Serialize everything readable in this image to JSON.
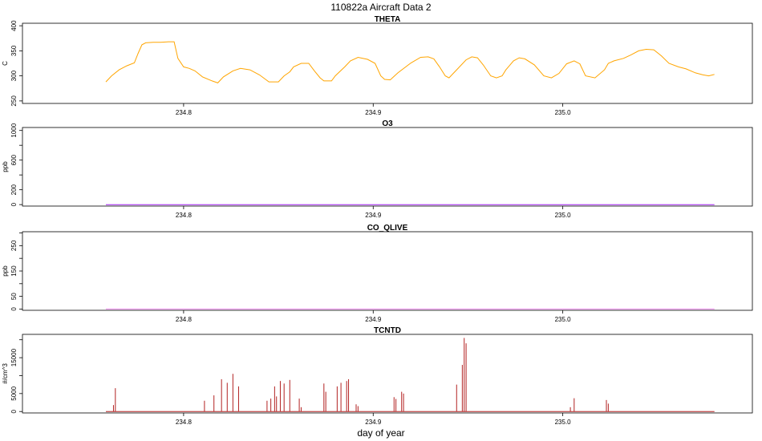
{
  "figure": {
    "title": "110822a   Aircraft Data 2",
    "xlabel": "day of year"
  },
  "chart_data": [
    {
      "type": "line",
      "title": "THETA",
      "ylabel": "C",
      "color": "#FFA500",
      "xlim": [
        234.715,
        235.1
      ],
      "ylim": [
        245,
        405
      ],
      "xticks": [
        234.8,
        234.9,
        235.0
      ],
      "xtick_labels": [
        "234.8",
        "234.9",
        "235.0"
      ],
      "yticks": [
        250,
        300,
        350,
        400
      ],
      "ytick_labels": [
        "250",
        "300",
        "350",
        "400"
      ],
      "x": [
        234.759,
        234.762,
        234.766,
        234.77,
        234.774,
        234.776,
        234.778,
        234.78,
        234.784,
        234.788,
        234.792,
        234.795,
        234.797,
        234.8,
        234.803,
        234.806,
        234.81,
        234.815,
        234.818,
        234.821,
        234.826,
        234.83,
        234.835,
        234.84,
        234.845,
        234.85,
        234.853,
        234.856,
        234.858,
        234.862,
        234.866,
        234.869,
        234.872,
        234.874,
        234.876,
        234.878,
        234.88,
        234.885,
        234.888,
        234.892,
        234.897,
        234.901,
        234.904,
        234.906,
        234.909,
        234.913,
        234.92,
        234.925,
        234.929,
        234.932,
        234.935,
        234.938,
        234.94,
        234.944,
        234.949,
        234.952,
        234.955,
        234.958,
        234.962,
        234.965,
        234.968,
        234.97,
        234.974,
        234.977,
        234.98,
        234.985,
        234.99,
        234.994,
        234.998,
        235.002,
        235.006,
        235.009,
        235.012,
        235.017,
        235.022,
        235.024,
        235.027,
        235.032,
        235.036,
        235.04,
        235.044,
        235.048,
        235.052,
        235.056,
        235.061,
        235.065,
        235.07,
        235.074,
        235.077,
        235.08
      ],
      "y": [
        288,
        300,
        312,
        320,
        326,
        345,
        362,
        366,
        367,
        367,
        368,
        368,
        335,
        318,
        315,
        310,
        298,
        290,
        286,
        298,
        310,
        315,
        312,
        302,
        288,
        288,
        300,
        308,
        318,
        325,
        325,
        310,
        296,
        290,
        290,
        290,
        300,
        318,
        330,
        337,
        333,
        325,
        300,
        293,
        292,
        306,
        326,
        337,
        338,
        334,
        318,
        300,
        296,
        312,
        332,
        338,
        336,
        322,
        300,
        296,
        300,
        312,
        330,
        336,
        334,
        322,
        300,
        296,
        305,
        324,
        330,
        324,
        300,
        296,
        312,
        325,
        330,
        335,
        342,
        350,
        353,
        352,
        340,
        325,
        318,
        314,
        306,
        302,
        300,
        303
      ]
    },
    {
      "type": "line",
      "title": "O3",
      "ylabel": "ppb",
      "color": "#A020F0",
      "xlim": [
        234.715,
        235.1
      ],
      "ylim": [
        -20,
        1040
      ],
      "xticks": [
        234.8,
        234.9,
        235.0
      ],
      "xtick_labels": [
        "234.8",
        "234.9",
        "235.0"
      ],
      "yticks": [
        0,
        200,
        400,
        600,
        800,
        1000
      ],
      "ytick_labels": [
        "0",
        "200",
        "",
        "600",
        "",
        "1000"
      ],
      "x": [
        234.759,
        235.08
      ],
      "y": [
        0,
        0
      ]
    },
    {
      "type": "line",
      "title": "CO_QLIVE",
      "ylabel": "ppb",
      "color": "#EE82EE",
      "xlim": [
        234.715,
        235.1
      ],
      "ylim": [
        -5,
        305
      ],
      "xticks": [
        234.8,
        234.9,
        235.0
      ],
      "xtick_labels": [
        "234.8",
        "234.9",
        "235.0"
      ],
      "yticks": [
        0,
        50,
        100,
        150,
        200,
        250,
        300
      ],
      "ytick_labels": [
        "0",
        "50",
        "",
        "150",
        "",
        "250",
        ""
      ],
      "x": [
        234.759,
        235.08
      ],
      "y": [
        0,
        0
      ]
    },
    {
      "type": "line",
      "title": "TCNTD",
      "ylabel": "#/cm^3",
      "color": "#B22222",
      "xlim": [
        234.715,
        235.1
      ],
      "ylim": [
        -400,
        21500
      ],
      "xticks": [
        234.8,
        234.9,
        235.0
      ],
      "xtick_labels": [
        "234.8",
        "234.9",
        "235.0"
      ],
      "yticks": [
        0,
        5000,
        10000,
        15000,
        20000
      ],
      "ytick_labels": [
        "0",
        "5000",
        "",
        "15000",
        ""
      ],
      "baseline": 0,
      "spikes": [
        {
          "x": 234.763,
          "y": 1800
        },
        {
          "x": 234.764,
          "y": 6500
        },
        {
          "x": 234.811,
          "y": 3000
        },
        {
          "x": 234.816,
          "y": 4500
        },
        {
          "x": 234.82,
          "y": 9000
        },
        {
          "x": 234.823,
          "y": 8000
        },
        {
          "x": 234.826,
          "y": 10500
        },
        {
          "x": 234.829,
          "y": 7000
        },
        {
          "x": 234.844,
          "y": 3000
        },
        {
          "x": 234.846,
          "y": 3600
        },
        {
          "x": 234.848,
          "y": 7000
        },
        {
          "x": 234.849,
          "y": 4200
        },
        {
          "x": 234.851,
          "y": 8500
        },
        {
          "x": 234.853,
          "y": 7800
        },
        {
          "x": 234.856,
          "y": 8800
        },
        {
          "x": 234.861,
          "y": 3600
        },
        {
          "x": 234.862,
          "y": 1200
        },
        {
          "x": 234.874,
          "y": 7800
        },
        {
          "x": 234.875,
          "y": 5500
        },
        {
          "x": 234.881,
          "y": 7000
        },
        {
          "x": 234.883,
          "y": 8000
        },
        {
          "x": 234.886,
          "y": 8500
        },
        {
          "x": 234.887,
          "y": 9000
        },
        {
          "x": 234.891,
          "y": 2000
        },
        {
          "x": 234.892,
          "y": 1500
        },
        {
          "x": 234.911,
          "y": 4000
        },
        {
          "x": 234.912,
          "y": 3500
        },
        {
          "x": 234.915,
          "y": 5500
        },
        {
          "x": 234.916,
          "y": 5000
        },
        {
          "x": 234.944,
          "y": 7500
        },
        {
          "x": 234.947,
          "y": 13000
        },
        {
          "x": 234.948,
          "y": 20500
        },
        {
          "x": 234.949,
          "y": 19000
        },
        {
          "x": 235.004,
          "y": 1200
        },
        {
          "x": 235.006,
          "y": 3700
        },
        {
          "x": 235.023,
          "y": 3200
        },
        {
          "x": 235.024,
          "y": 2200
        }
      ]
    }
  ]
}
